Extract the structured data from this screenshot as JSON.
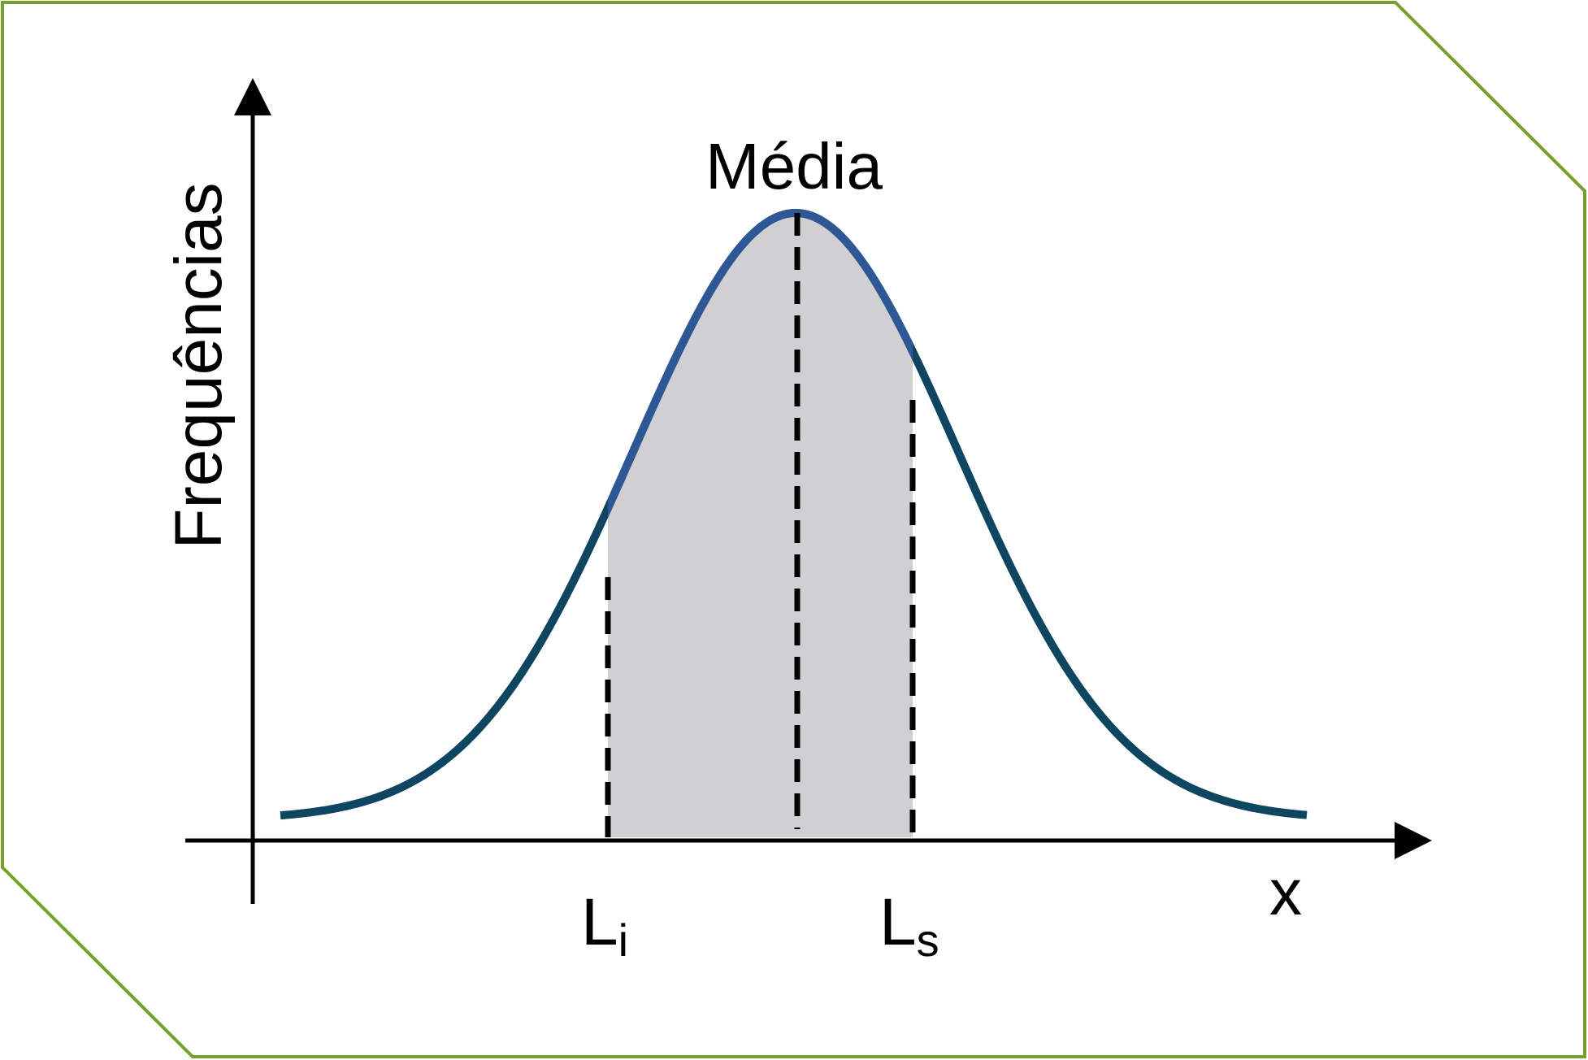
{
  "labels": {
    "mean": "Média",
    "y_axis": "Frequências",
    "x_axis": "x",
    "lower_limit_letter": "L",
    "lower_limit_sub": "i",
    "upper_limit_letter": "L",
    "upper_limit_sub": "s"
  },
  "colors": {
    "frame_border": "#76a02c",
    "curve_outer": "#0e4560",
    "curve_highlight": "#2e5795",
    "shaded_area": "#d0cfd1",
    "axes": "#000000"
  }
}
